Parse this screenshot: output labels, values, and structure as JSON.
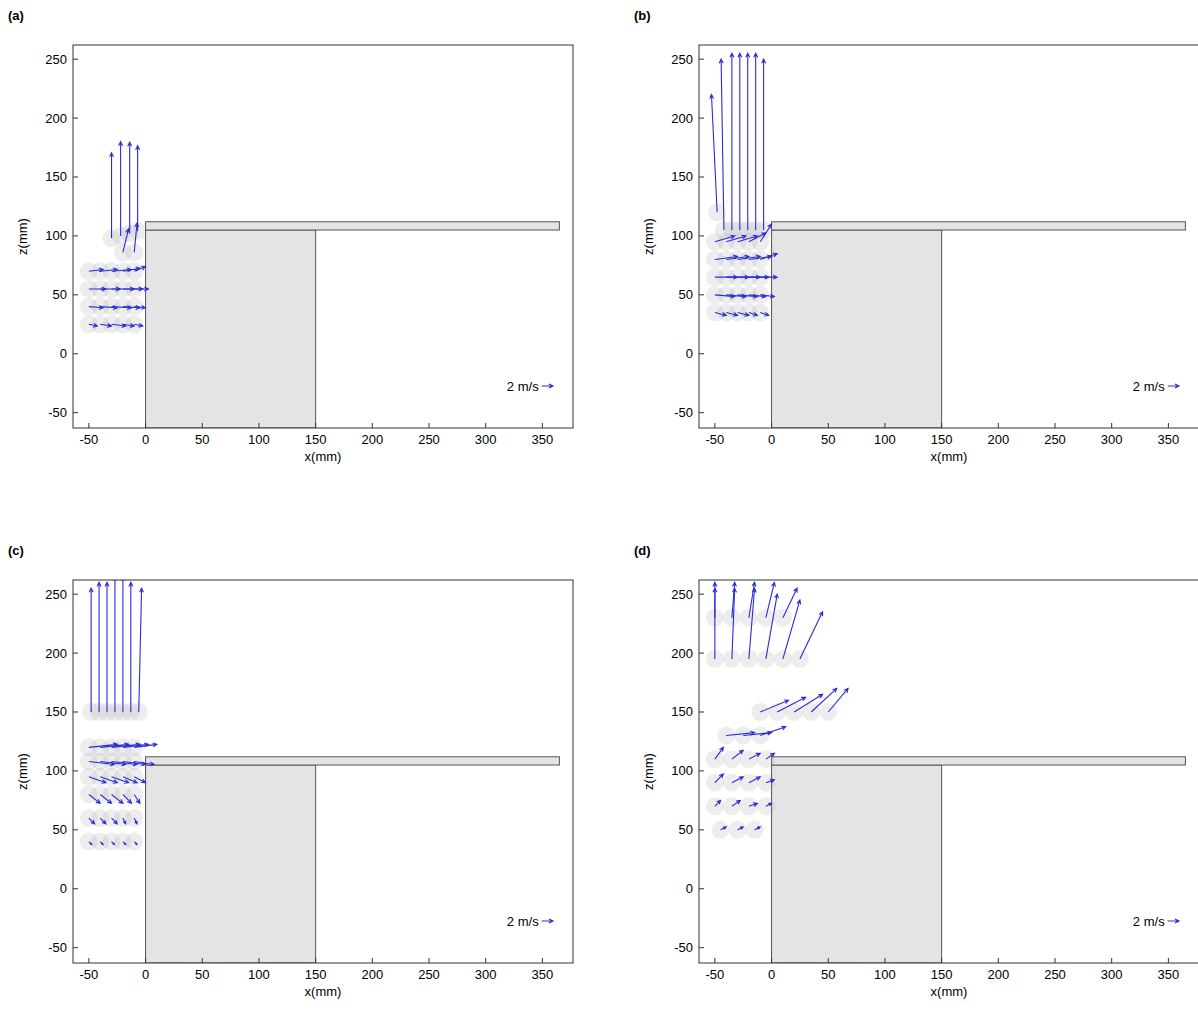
{
  "chart_data": [
    {
      "type": "quiver",
      "title": "(a)",
      "xlabel": "x(mm)",
      "ylabel": "z(mm)",
      "xlim": [
        -64,
        377
      ],
      "ylim": [
        -63,
        262
      ],
      "xticks": [
        -50,
        0,
        50,
        100,
        150,
        200,
        250,
        300,
        350
      ],
      "yticks": [
        -50,
        0,
        50,
        100,
        150,
        200,
        250
      ],
      "color": "#2b2bd6",
      "x": [
        -30,
        -22,
        -14,
        -7,
        -20,
        -10,
        -50,
        -40,
        -30,
        -20,
        -10,
        -50,
        -40,
        -30,
        -20,
        -10,
        -50,
        -40,
        -30,
        -20,
        -10,
        -50,
        -40,
        -30,
        -20,
        -10
      ],
      "y": [
        98,
        100,
        102,
        104,
        86,
        86,
        70,
        70,
        70,
        70,
        70,
        55,
        55,
        55,
        55,
        55,
        40,
        40,
        40,
        40,
        40,
        25,
        25,
        25,
        25,
        25
      ],
      "u": [
        0,
        0,
        0,
        0,
        1,
        0.5,
        2.5,
        3,
        3.5,
        3,
        2,
        3,
        3.5,
        4,
        3.5,
        2.5,
        2.5,
        3,
        3.5,
        3,
        2,
        1.5,
        2,
        2.5,
        2,
        1.5
      ],
      "v": [
        14.5,
        16,
        15.5,
        14.5,
        4,
        5,
        0.3,
        0.3,
        0.3,
        0.5,
        0.8,
        0,
        0,
        0,
        0,
        0,
        -0.2,
        -0.2,
        -0.2,
        -0.2,
        -0.2,
        -0.3,
        -0.3,
        -0.3,
        -0.3,
        -0.3
      ],
      "reference": {
        "value": 2,
        "label": "2 m/s"
      },
      "deck_x": [
        0,
        365
      ],
      "deck_z": [
        105,
        112
      ],
      "caisson_x": [
        0,
        150
      ],
      "caisson_top": 105
    },
    {
      "type": "quiver",
      "title": "(b)",
      "xlabel": "x(mm)",
      "ylabel": "z(mm)",
      "xlim": [
        -64,
        377
      ],
      "ylim": [
        -63,
        262
      ],
      "xticks": [
        -50,
        0,
        50,
        100,
        150,
        200,
        250,
        300,
        350
      ],
      "yticks": [
        -50,
        0,
        50,
        100,
        150,
        200,
        250
      ],
      "color": "#2b2bd6",
      "x": [
        -48,
        -42,
        -35,
        -28,
        -21,
        -14,
        -7,
        -50,
        -40,
        -30,
        -20,
        -10,
        -50,
        -40,
        -30,
        -20,
        -10,
        -50,
        -40,
        -30,
        -20,
        -10,
        -50,
        -40,
        -30,
        -20,
        -10,
        -50,
        -40,
        -30,
        -20,
        -10
      ],
      "y": [
        120,
        105,
        105,
        105,
        105,
        105,
        105,
        95,
        95,
        95,
        95,
        95,
        80,
        80,
        80,
        80,
        80,
        65,
        65,
        65,
        65,
        65,
        50,
        50,
        50,
        50,
        50,
        35,
        35,
        35,
        35,
        35
      ],
      "u": [
        -1,
        -0.5,
        0,
        0,
        0,
        0,
        0,
        3.5,
        3.5,
        3.5,
        3,
        2,
        4,
        4,
        4,
        4,
        3,
        4,
        4,
        4,
        3.5,
        3,
        3.5,
        3.5,
        3.5,
        3,
        2.5,
        2,
        2,
        2,
        1.5,
        1.5
      ],
      "v": [
        20,
        29,
        30,
        30,
        30,
        30,
        29,
        1,
        1,
        1,
        1.5,
        3,
        0.5,
        0.5,
        0.5,
        0.5,
        1,
        0,
        0,
        0,
        0,
        0,
        -0.3,
        -0.3,
        -0.3,
        -0.3,
        -0.3,
        -0.5,
        -0.5,
        -0.5,
        -0.5,
        -0.5
      ],
      "reference": {
        "value": 2,
        "label": "2 m/s"
      },
      "deck_x": [
        0,
        365
      ],
      "deck_z": [
        105,
        112
      ],
      "caisson_x": [
        0,
        150
      ],
      "caisson_top": 105
    },
    {
      "type": "quiver",
      "title": "(c)",
      "xlabel": "x(mm)",
      "ylabel": "z(mm)",
      "xlim": [
        -64,
        377
      ],
      "ylim": [
        -63,
        262
      ],
      "xticks": [
        -50,
        0,
        50,
        100,
        150,
        200,
        250,
        300,
        350
      ],
      "yticks": [
        -50,
        0,
        50,
        100,
        150,
        200,
        250
      ],
      "color": "#2b2bd6",
      "x": [
        -48,
        -41,
        -34,
        -27,
        -20,
        -13,
        -6,
        -50,
        -40,
        -30,
        -20,
        -10,
        -50,
        -40,
        -30,
        -20,
        -10,
        -50,
        -40,
        -30,
        -20,
        -10,
        -50,
        -40,
        -30,
        -20,
        -10,
        -50,
        -40,
        -30,
        -20,
        -10,
        -50,
        -40,
        -30,
        -20,
        -10
      ],
      "y": [
        150,
        150,
        150,
        150,
        150,
        150,
        150,
        120,
        120,
        120,
        120,
        120,
        108,
        108,
        108,
        108,
        108,
        95,
        95,
        95,
        95,
        95,
        80,
        80,
        80,
        80,
        80,
        60,
        60,
        60,
        60,
        60,
        40,
        40,
        40,
        40,
        40
      ],
      "u": [
        0,
        0,
        0,
        0,
        0,
        0,
        0.5,
        5,
        5,
        5,
        4.5,
        4,
        4.5,
        4.5,
        4.5,
        4,
        3.5,
        3,
        3,
        3,
        2.5,
        2,
        2,
        2,
        2,
        1.5,
        1,
        1,
        1,
        1,
        0.5,
        0.5,
        0.5,
        0.5,
        0.5,
        0.5,
        0.5
      ],
      "v": [
        21,
        22,
        22,
        23,
        23,
        22,
        21,
        0.5,
        0.5,
        0.5,
        0.5,
        0.5,
        -0.5,
        -0.5,
        -0.5,
        -0.5,
        -0.5,
        -1,
        -1,
        -1,
        -1,
        -1,
        -1.5,
        -1.5,
        -1.5,
        -1.5,
        -1.5,
        -1,
        -1,
        -1,
        -1,
        -1,
        -0.5,
        -0.5,
        -0.5,
        -0.5,
        -0.5
      ],
      "reference": {
        "value": 2,
        "label": "2 m/s"
      },
      "deck_x": [
        0,
        365
      ],
      "deck_z": [
        105,
        112
      ],
      "caisson_x": [
        0,
        150
      ],
      "caisson_top": 105
    },
    {
      "type": "quiver",
      "title": "(d)",
      "xlabel": "x(mm)",
      "ylabel": "z(mm)",
      "xlim": [
        -64,
        377
      ],
      "ylim": [
        -63,
        262
      ],
      "xticks": [
        -50,
        0,
        50,
        100,
        150,
        200,
        250,
        300,
        350
      ],
      "yticks": [
        -50,
        0,
        50,
        100,
        150,
        200,
        250
      ],
      "color": "#2b2bd6",
      "x": [
        -50,
        -35,
        -20,
        -5,
        10,
        25,
        -50,
        -35,
        -20,
        -5,
        10,
        -10,
        5,
        20,
        35,
        50,
        -40,
        -25,
        -10,
        -50,
        -35,
        -20,
        -5,
        -50,
        -35,
        -20,
        -5,
        -50,
        -35,
        -20,
        -5,
        -45,
        -30,
        -15
      ],
      "y": [
        195,
        195,
        195,
        195,
        195,
        195,
        230,
        230,
        230,
        230,
        230,
        150,
        150,
        150,
        150,
        150,
        130,
        130,
        130,
        110,
        110,
        110,
        110,
        90,
        90,
        90,
        90,
        70,
        70,
        70,
        70,
        50,
        50,
        50
      ],
      "u": [
        0,
        0.5,
        1,
        2,
        3,
        4,
        0,
        0.5,
        1,
        1.5,
        2.5,
        5,
        5,
        5,
        4.5,
        3.5,
        5,
        5,
        4.5,
        1.5,
        2,
        2,
        1.5,
        1.5,
        2,
        2,
        1.5,
        1,
        1.5,
        1.5,
        1,
        1,
        1,
        1
      ],
      "v": [
        12,
        12,
        12,
        11,
        10,
        8,
        6,
        6,
        6,
        6,
        5,
        2,
        2.5,
        3,
        4,
        4,
        0.5,
        0.5,
        1.5,
        2,
        1.5,
        1,
        1,
        1.5,
        1,
        1,
        0.5,
        1,
        1,
        0.5,
        0.5,
        0.5,
        0.5,
        0.5
      ],
      "reference": {
        "value": 2,
        "label": "2 m/s"
      },
      "deck_x": [
        0,
        365
      ],
      "deck_z": [
        105,
        112
      ],
      "caisson_x": [
        0,
        150
      ],
      "caisson_top": 105
    }
  ]
}
